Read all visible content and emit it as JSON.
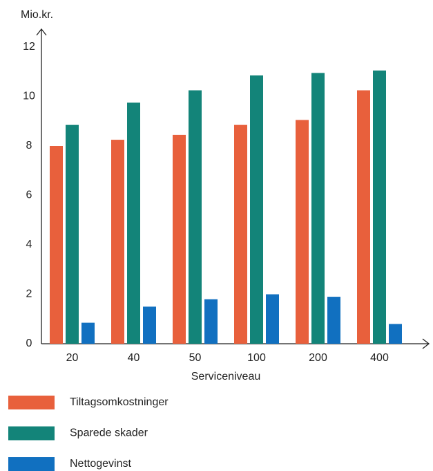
{
  "chart_data": {
    "type": "bar",
    "y_label": "Mio.kr.",
    "x_label": "Serviceniveau",
    "categories": [
      "20",
      "40",
      "50",
      "100",
      "200",
      "400"
    ],
    "series": [
      {
        "name": "Tiltagsomkostninger",
        "color": "#e8603c",
        "values": [
          8.0,
          8.25,
          8.45,
          8.85,
          9.05,
          10.25
        ]
      },
      {
        "name": "Sparede skader",
        "color": "#138479",
        "values": [
          8.85,
          9.75,
          10.25,
          10.85,
          10.95,
          11.05
        ]
      },
      {
        "name": "Nettogevinst",
        "color": "#1170c0",
        "values": [
          0.85,
          1.5,
          1.8,
          2.0,
          1.9,
          0.8
        ]
      }
    ],
    "ylim": [
      0,
      12
    ],
    "yticks": [
      0,
      2,
      4,
      6,
      8,
      10,
      12
    ],
    "grid": false,
    "legend": "bottom"
  }
}
